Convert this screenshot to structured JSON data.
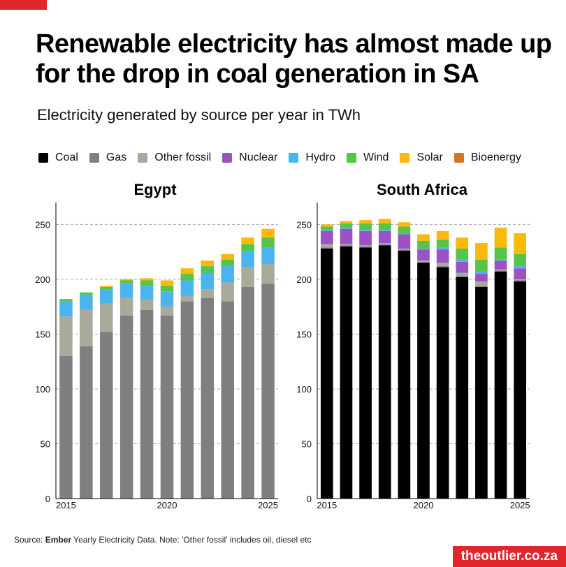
{
  "title": "Renewable electricity has almost made up for the drop in coal generation in SA",
  "subtitle": "Electricity generated by source per year in TWh",
  "legend": [
    {
      "name": "Coal",
      "color": "#000000"
    },
    {
      "name": "Gas",
      "color": "#7f7f7f"
    },
    {
      "name": "Other fossil",
      "color": "#a9aa9c"
    },
    {
      "name": "Nuclear",
      "color": "#9b53c4"
    },
    {
      "name": "Hydro",
      "color": "#4ab4ef"
    },
    {
      "name": "Wind",
      "color": "#55c447"
    },
    {
      "name": "Solar",
      "color": "#fbb90f"
    },
    {
      "name": "Bioenergy",
      "color": "#d07624"
    }
  ],
  "chart_data": [
    {
      "type": "bar",
      "stacked": true,
      "title": "Egypt",
      "x": [
        2015,
        2016,
        2017,
        2018,
        2019,
        2020,
        2021,
        2022,
        2023,
        2024,
        2025
      ],
      "x_tick_labels": [
        "2015",
        "2020",
        "2025"
      ],
      "y_ticks": [
        0,
        50,
        100,
        150,
        200,
        250
      ],
      "ylim": [
        0,
        270
      ],
      "grid": "horizontal dashed",
      "series": [
        {
          "name": "Coal",
          "values": [
            0,
            0,
            0,
            0,
            0,
            0,
            0,
            0,
            0,
            0,
            0
          ]
        },
        {
          "name": "Gas",
          "values": [
            130,
            139,
            152,
            167,
            172,
            167,
            180,
            183,
            180,
            193,
            196
          ]
        },
        {
          "name": "Other fossil",
          "values": [
            36,
            33,
            26,
            16,
            9,
            8,
            5,
            8,
            17,
            18,
            18
          ]
        },
        {
          "name": "Nuclear",
          "values": [
            0,
            0,
            0,
            0,
            0,
            0,
            0,
            0,
            0,
            0,
            0
          ]
        },
        {
          "name": "Hydro",
          "values": [
            14,
            14,
            13,
            13,
            13,
            14,
            14,
            15,
            15,
            15,
            15
          ]
        },
        {
          "name": "Wind",
          "values": [
            2,
            2,
            2,
            3,
            5,
            5,
            6,
            6,
            6,
            6,
            9
          ]
        },
        {
          "name": "Solar",
          "values": [
            0,
            0,
            1,
            1,
            2,
            5,
            5,
            5,
            5,
            6,
            8
          ]
        },
        {
          "name": "Bioenergy",
          "values": [
            0,
            0,
            0,
            0,
            0,
            0,
            0,
            0,
            0,
            0,
            0
          ]
        }
      ]
    },
    {
      "type": "bar",
      "stacked": true,
      "title": "South Africa",
      "x": [
        2015,
        2016,
        2017,
        2018,
        2019,
        2020,
        2021,
        2022,
        2023,
        2024,
        2025
      ],
      "x_tick_labels": [
        "2015",
        "2020",
        "2025"
      ],
      "y_ticks": [
        0,
        50,
        100,
        150,
        200,
        250
      ],
      "ylim": [
        0,
        270
      ],
      "grid": "horizontal dashed",
      "series": [
        {
          "name": "Coal",
          "values": [
            228,
            230,
            229,
            231,
            226,
            215,
            211,
            202,
            193,
            207,
            198
          ]
        },
        {
          "name": "Gas",
          "values": [
            1,
            1,
            1,
            1,
            1,
            1,
            1,
            1,
            1,
            1,
            1
          ]
        },
        {
          "name": "Other fossil",
          "values": [
            3,
            1,
            1,
            1,
            1,
            1,
            3,
            3,
            4,
            1,
            1
          ]
        },
        {
          "name": "Nuclear",
          "values": [
            12,
            14,
            13,
            11,
            13,
            10,
            12,
            10,
            7,
            8,
            10
          ]
        },
        {
          "name": "Hydro",
          "values": [
            1,
            1,
            1,
            1,
            1,
            1,
            2,
            2,
            2,
            1,
            2
          ]
        },
        {
          "name": "Wind",
          "values": [
            3,
            4,
            6,
            6,
            6,
            7,
            7,
            10,
            11,
            11,
            11
          ]
        },
        {
          "name": "Solar",
          "values": [
            2,
            2,
            3,
            4,
            4,
            6,
            8,
            10,
            15,
            18,
            19
          ]
        },
        {
          "name": "Bioenergy",
          "values": [
            0,
            0,
            0,
            0,
            0,
            0,
            0,
            0,
            0,
            0,
            0
          ]
        }
      ]
    }
  ],
  "source": {
    "prefix": "Source: ",
    "name": "Ember",
    "rest": " Yearly Electricity Data. Note: 'Other fossil' includes oil, diesel etc"
  },
  "brand": "theoutlier.co.za"
}
